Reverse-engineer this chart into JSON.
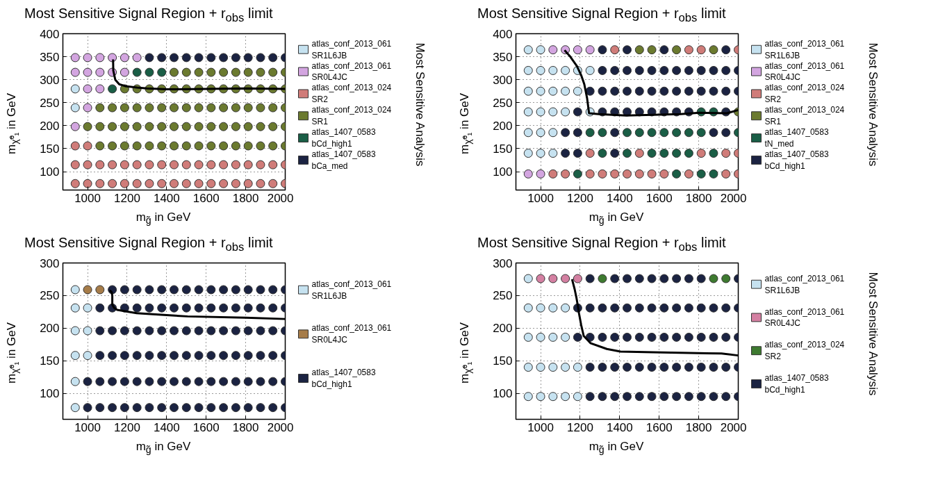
{
  "chart_data": [
    {
      "type": "scatter",
      "title": "Most Sensitive Signal Region + r$_{obs}$ limit",
      "xlabel": "m$_{g̃}$ in GeV",
      "ylabel": "m$_{χ̃⁰₁}$ in GeV",
      "legend_title": "Most Sensitive Analysis",
      "xlim": [
        875,
        2000
      ],
      "xticks": [
        1000,
        1200,
        1400,
        1600,
        1800,
        2000
      ],
      "ylim": [
        60,
        400
      ],
      "yticks": [
        100,
        150,
        200,
        250,
        300,
        350,
        400
      ],
      "grid": true,
      "legend": "right",
      "marker": "circle",
      "series": [
        {
          "name": "atlas_conf_2013_061\nSR1L6JB",
          "color": "#c6e2f0",
          "x": [
            937.5,
            937.5
          ],
          "values": [
            280,
            239
          ]
        },
        {
          "name": "atlas_conf_2013_061\nSR0L4JC",
          "color": "#d3a5e0",
          "x": [
            937.5,
            1000,
            1062.5,
            1125,
            1187.5,
            1250,
            937.5,
            1000,
            1062.5,
            1125,
            1187.5,
            1000,
            1062.5,
            1000,
            937.5
          ],
          "values": [
            348,
            348,
            348,
            348,
            348,
            348,
            316,
            316,
            316,
            316,
            316,
            280,
            280,
            239,
            198
          ]
        },
        {
          "name": "atlas_conf_2013_024\nSR2",
          "color": "#d07c79",
          "x": [
            937.5,
            1000,
            937.5,
            1000,
            1062.5,
            1125,
            1187.5,
            1250,
            1312.5,
            1375,
            1437.5,
            1500,
            1562.5,
            1625,
            1687.5,
            1750,
            1812.5,
            1875,
            1937.5,
            2000,
            937.5,
            1000,
            1062.5,
            1125,
            1187.5,
            1250,
            1312.5,
            1375,
            1437.5,
            1500,
            1562.5,
            1625,
            1687.5,
            1750,
            1812.5,
            1875,
            1937.5,
            2000
          ],
          "values": [
            156,
            156,
            115,
            115,
            115,
            115,
            115,
            115,
            115,
            115,
            115,
            115,
            115,
            115,
            115,
            115,
            115,
            115,
            115,
            115,
            74,
            74,
            74,
            74,
            74,
            74,
            74,
            74,
            74,
            74,
            74,
            74,
            74,
            74,
            74,
            74,
            74,
            74
          ]
        },
        {
          "name": "atlas_conf_2013_024\nSR1",
          "color": "#6b7a2f",
          "x": [
            1437.5,
            1500,
            1562.5,
            1625,
            1687.5,
            1750,
            1812.5,
            1875,
            1937.5,
            2000,
            1187.5,
            1250,
            1312.5,
            1375,
            1437.5,
            1500,
            1562.5,
            1625,
            1687.5,
            1750,
            1812.5,
            1875,
            1937.5,
            2000,
            1062.5,
            1125,
            1187.5,
            1250,
            1312.5,
            1375,
            1437.5,
            1500,
            1562.5,
            1625,
            1687.5,
            1750,
            1812.5,
            1875,
            1937.5,
            2000,
            1000,
            1062.5,
            1125,
            1187.5,
            1250,
            1312.5,
            1375,
            1437.5,
            1500,
            1562.5,
            1625,
            1687.5,
            1750,
            1812.5,
            1875,
            1937.5,
            2000,
            1062.5,
            1125,
            1187.5,
            1250,
            1312.5,
            1375,
            1437.5,
            1500,
            1562.5,
            1625,
            1687.5,
            1750,
            1812.5,
            1875,
            1937.5,
            2000
          ],
          "values": [
            316,
            316,
            316,
            316,
            316,
            316,
            316,
            316,
            316,
            316,
            280,
            280,
            280,
            280,
            280,
            280,
            280,
            280,
            280,
            280,
            280,
            280,
            280,
            280,
            239,
            239,
            239,
            239,
            239,
            239,
            239,
            239,
            239,
            239,
            239,
            239,
            239,
            239,
            239,
            239,
            198,
            198,
            198,
            198,
            198,
            198,
            198,
            198,
            198,
            198,
            198,
            198,
            198,
            198,
            198,
            198,
            198,
            156,
            156,
            156,
            156,
            156,
            156,
            156,
            156,
            156,
            156,
            156,
            156,
            156,
            156,
            156,
            156
          ]
        },
        {
          "name": "atlas_1407_0583\nbCd_high1",
          "color": "#1a5e46",
          "x": [
            1250,
            1312.5,
            1375,
            1125
          ],
          "values": [
            316,
            316,
            316,
            280
          ]
        },
        {
          "name": "atlas_1407_0583\nbCa_med",
          "color": "#1b2342",
          "x": [
            1312.5,
            1375,
            1437.5,
            1500,
            1562.5,
            1625,
            1687.5,
            1750,
            1812.5,
            1875,
            1937.5,
            2000
          ],
          "values": [
            348,
            348,
            348,
            348,
            348,
            348,
            348,
            348,
            348,
            348,
            348,
            348
          ]
        },
        {
          "type": "line",
          "marker": "none",
          "color": "#000000",
          "x": [
            1129,
            1130,
            1140,
            1160,
            1190,
            1250,
            1300,
            1400,
            1600,
            1800,
            2000
          ],
          "values": [
            344,
            320,
            300,
            290,
            286,
            283,
            281,
            279,
            280,
            281,
            280
          ]
        }
      ]
    },
    {
      "type": "scatter",
      "title": "Most Sensitive Signal Region + r$_{obs}$ limit",
      "xlabel": "m$_{g̃}$ in GeV",
      "ylabel": "m$_{χ̃⁰₁}$ in GeV",
      "legend_title": "Most Sensitive Analysis",
      "xlim": [
        875,
        2000
      ],
      "xticks": [
        1000,
        1200,
        1400,
        1600,
        1800,
        2000
      ],
      "ylim": [
        60,
        400
      ],
      "yticks": [
        100,
        150,
        200,
        250,
        300,
        350,
        400
      ],
      "grid": true,
      "legend": "right",
      "marker": "circle",
      "series": [
        {
          "name": "atlas_conf_2013_061\nSR1L6JB",
          "color": "#c6e2f0",
          "x": [
            937.5,
            1000,
            937.5,
            1000,
            1062.5,
            1125,
            1187.5,
            1250,
            937.5,
            1000,
            1062.5,
            1125,
            1187.5,
            937.5,
            1000,
            1062.5,
            1125,
            1250,
            937.5,
            1000,
            1062.5,
            937.5,
            1000,
            1062.5
          ],
          "values": [
            365,
            365,
            320,
            320,
            320,
            320,
            320,
            320,
            275,
            275,
            275,
            275,
            275,
            230,
            230,
            230,
            230,
            230,
            185,
            185,
            185,
            140,
            140,
            140
          ]
        },
        {
          "name": "atlas_conf_2013_061\nSR0L4JC",
          "color": "#d3a5e0",
          "x": [
            1062.5,
            1125,
            1187.5,
            1250,
            937.5,
            1000
          ],
          "values": [
            365,
            365,
            365,
            365,
            95,
            95
          ]
        },
        {
          "name": "atlas_conf_2013_024\nSR2",
          "color": "#d07c79",
          "x": [
            1375,
            1750,
            1812.5,
            2000,
            1250,
            1500,
            1812.5,
            1937.5,
            2000,
            1062.5,
            1125,
            1250,
            1312.5,
            1375,
            1437.5,
            1500,
            1562.5,
            1625,
            1750,
            1937.5,
            2000
          ],
          "values": [
            365,
            365,
            365,
            365,
            140,
            140,
            140,
            140,
            140,
            95,
            95,
            95,
            95,
            95,
            95,
            95,
            95,
            95,
            95,
            95,
            95
          ]
        },
        {
          "name": "atlas_conf_2013_024\nSR1",
          "color": "#6b7a2f",
          "x": [
            1500,
            1562.5,
            1687.5,
            1875,
            2000
          ],
          "values": [
            365,
            365,
            365,
            365,
            230
          ]
        },
        {
          "name": "atlas_1407_0583\ntN_med",
          "color": "#1a5e46",
          "x": [
            1812.5,
            1875,
            1250,
            1312.5,
            1437.5,
            1500,
            1562.5,
            1625,
            1687.5,
            1750,
            1812.5,
            2000,
            1312.5,
            1437.5,
            1562.5,
            1625,
            1687.5,
            1750,
            1875,
            1187.5,
            1687.5,
            1812.5,
            1875
          ],
          "values": [
            230,
            230,
            185,
            185,
            185,
            185,
            185,
            185,
            185,
            185,
            185,
            185,
            140,
            140,
            140,
            140,
            140,
            140,
            140,
            95,
            95,
            95,
            95
          ]
        },
        {
          "name": "atlas_1407_0583\nbCd_high1",
          "color": "#1b2342",
          "x": [
            1312.5,
            1437.5,
            1625,
            1937.5,
            1312.5,
            1375,
            1437.5,
            1500,
            1562.5,
            1625,
            1687.5,
            1750,
            1812.5,
            1875,
            1937.5,
            2000,
            1250,
            1312.5,
            1375,
            1437.5,
            1500,
            1562.5,
            1625,
            1687.5,
            1750,
            1812.5,
            1875,
            1937.5,
            2000,
            1187.5,
            1312.5,
            1375,
            1437.5,
            1500,
            1562.5,
            1625,
            1687.5,
            1750,
            1937.5,
            1125,
            1187.5,
            1375,
            1875,
            1937.5,
            1125,
            1187.5,
            1375
          ],
          "values": [
            365,
            365,
            365,
            365,
            320,
            320,
            320,
            320,
            320,
            320,
            320,
            320,
            320,
            320,
            320,
            320,
            275,
            275,
            275,
            275,
            275,
            275,
            275,
            275,
            275,
            275,
            275,
            275,
            275,
            230,
            230,
            230,
            230,
            230,
            230,
            230,
            230,
            230,
            230,
            185,
            185,
            185,
            185,
            185,
            140,
            140,
            140
          ]
        },
        {
          "type": "line",
          "marker": "none",
          "color": "#000000",
          "x": [
            1121,
            1150,
            1183,
            1205,
            1221,
            1235,
            1245,
            1294,
            1432,
            1600,
            1707,
            1804,
            1942,
            2000
          ],
          "values": [
            364,
            350,
            330,
            310,
            290,
            260,
            227,
            225,
            222,
            224,
            225,
            228,
            227,
            234
          ]
        }
      ]
    },
    {
      "type": "scatter",
      "title": "Most Sensitive Signal Region + r$_{obs}$ limit",
      "xlabel": "m$_{g̃}$ in GeV",
      "ylabel": "m$_{χ̃⁰₁}$ in GeV",
      "xlim": [
        875,
        2000
      ],
      "xticks": [
        1000,
        1200,
        1400,
        1600,
        1800,
        2000
      ],
      "ylim": [
        60,
        300
      ],
      "yticks": [
        100,
        150,
        200,
        250,
        300
      ],
      "grid": true,
      "legend": "right",
      "marker": "circle",
      "series": [
        {
          "name": "atlas_conf_2013_061\nSR1L6JB",
          "color": "#c6e2f0",
          "x": [
            937.5,
            937.5,
            937.5,
            937.5,
            937.5,
            937.5,
            1000,
            1000,
            1000
          ],
          "values": [
            259,
            231,
            196,
            158,
            118,
            78,
            231,
            196,
            158
          ]
        },
        {
          "name": "atlas_conf_2013_061\nSR0L4JC",
          "color": "#a67c49",
          "x": [
            1000,
            1062.5
          ],
          "values": [
            259,
            259
          ]
        },
        {
          "name": "atlas_1407_0583\nbCd_high1",
          "color": "#1b2342",
          "x": [
            1125,
            1187.5,
            1250,
            1312.5,
            1375,
            1437.5,
            1500,
            1562.5,
            1625,
            1687.5,
            1750,
            1812.5,
            1875,
            1937.5,
            2000,
            1062.5,
            1125,
            1187.5,
            1250,
            1312.5,
            1375,
            1437.5,
            1500,
            1562.5,
            1625,
            1687.5,
            1750,
            1812.5,
            1875,
            1937.5,
            2000,
            1062.5,
            1125,
            1187.5,
            1250,
            1312.5,
            1375,
            1437.5,
            1500,
            1562.5,
            1625,
            1687.5,
            1750,
            1812.5,
            1875,
            1937.5,
            2000,
            1062.5,
            1125,
            1187.5,
            1250,
            1312.5,
            1375,
            1437.5,
            1500,
            1562.5,
            1625,
            1687.5,
            1750,
            1812.5,
            1875,
            1937.5,
            2000,
            1000,
            1062.5,
            1125,
            1187.5,
            1250,
            1312.5,
            1375,
            1437.5,
            1500,
            1562.5,
            1625,
            1687.5,
            1750,
            1812.5,
            1875,
            1937.5,
            2000,
            1000,
            1062.5,
            1125,
            1187.5,
            1250,
            1312.5,
            1375,
            1437.5,
            1500,
            1562.5,
            1625,
            1687.5,
            1750,
            1812.5,
            1875,
            1937.5,
            2000
          ],
          "values": [
            259,
            259,
            259,
            259,
            259,
            259,
            259,
            259,
            259,
            259,
            259,
            259,
            259,
            259,
            259,
            231,
            231,
            231,
            231,
            231,
            231,
            231,
            231,
            231,
            231,
            231,
            231,
            231,
            231,
            231,
            231,
            196,
            196,
            196,
            196,
            196,
            196,
            196,
            196,
            196,
            196,
            196,
            196,
            196,
            196,
            196,
            196,
            158,
            158,
            158,
            158,
            158,
            158,
            158,
            158,
            158,
            158,
            158,
            158,
            158,
            158,
            158,
            158,
            118,
            118,
            118,
            118,
            118,
            118,
            118,
            118,
            118,
            118,
            118,
            118,
            118,
            118,
            118,
            118,
            118,
            78,
            78,
            78,
            78,
            78,
            78,
            78,
            78,
            78,
            78,
            78,
            78,
            78,
            78,
            78,
            78,
            78
          ]
        },
        {
          "type": "line",
          "marker": "none",
          "color": "#000000",
          "x": [
            1112,
            1122,
            1125,
            1125,
            1135,
            1150,
            1248,
            1400,
            1506,
            1800,
            2000
          ],
          "values": [
            258,
            255,
            250,
            236,
            231,
            228,
            223,
            220,
            218,
            216,
            214
          ]
        }
      ]
    },
    {
      "type": "scatter",
      "title": "Most Sensitive Signal Region + r$_{obs}$ limit",
      "xlabel": "m$_{g̃}$ in GeV",
      "ylabel": "m$_{χ̃⁰₁}$ in GeV",
      "legend_title": "Most Sensitive Analysis",
      "xlim": [
        875,
        2000
      ],
      "xticks": [
        1000,
        1200,
        1400,
        1600,
        1800,
        2000
      ],
      "ylim": [
        60,
        300
      ],
      "yticks": [
        100,
        150,
        200,
        250,
        300
      ],
      "grid": true,
      "legend": "right",
      "marker": "circle",
      "series": [
        {
          "name": "atlas_conf_2013_061\nSR1L6JB",
          "color": "#c6e2f0",
          "x": [
            937.5,
            937.5,
            1000,
            1062.5,
            1125,
            937.5,
            1000,
            1062.5,
            1125,
            937.5,
            1000,
            1062.5,
            1125,
            1187.5,
            937.5,
            1000,
            1062.5,
            1125,
            1187.5
          ],
          "values": [
            276,
            231,
            231,
            231,
            231,
            186,
            186,
            186,
            186,
            140,
            140,
            140,
            140,
            140,
            95,
            95,
            95,
            95,
            95
          ]
        },
        {
          "name": "atlas_conf_2013_061\nSR0L4JC",
          "color": "#d480a2",
          "x": [
            1000,
            1062.5,
            1125,
            1187.5
          ],
          "values": [
            276,
            276,
            276,
            276
          ]
        },
        {
          "name": "atlas_conf_2013_024\nSR2",
          "color": "#3e7a30",
          "x": [
            1312.5,
            1875,
            1937.5
          ],
          "values": [
            276,
            276,
            276
          ]
        },
        {
          "name": "atlas_1407_0583\nbCd_high1",
          "color": "#1b2342",
          "x": [
            1250,
            1375,
            1437.5,
            1500,
            1562.5,
            1625,
            1687.5,
            1750,
            1812.5,
            2000,
            1187.5,
            1250,
            1312.5,
            1375,
            1437.5,
            1500,
            1562.5,
            1625,
            1687.5,
            1750,
            1812.5,
            1875,
            1937.5,
            2000,
            1187.5,
            1250,
            1312.5,
            1375,
            1437.5,
            1500,
            1562.5,
            1625,
            1687.5,
            1750,
            1812.5,
            1875,
            1937.5,
            2000,
            1250,
            1312.5,
            1375,
            1437.5,
            1500,
            1562.5,
            1625,
            1687.5,
            1750,
            1812.5,
            1875,
            1937.5,
            2000,
            1250,
            1312.5,
            1375,
            1437.5,
            1500,
            1562.5,
            1625,
            1687.5,
            1750,
            1812.5,
            1875,
            1937.5,
            2000
          ],
          "values": [
            276,
            276,
            276,
            276,
            276,
            276,
            276,
            276,
            276,
            276,
            231,
            231,
            231,
            231,
            231,
            231,
            231,
            231,
            231,
            231,
            231,
            231,
            231,
            231,
            186,
            186,
            186,
            186,
            186,
            186,
            186,
            186,
            186,
            186,
            186,
            186,
            186,
            186,
            140,
            140,
            140,
            140,
            140,
            140,
            140,
            140,
            140,
            140,
            140,
            140,
            140,
            95,
            95,
            95,
            95,
            95,
            95,
            95,
            95,
            95,
            95,
            95,
            95,
            95
          ]
        },
        {
          "type": "line",
          "marker": "none",
          "color": "#000000",
          "x": [
            1159,
            1172,
            1181,
            1188,
            1194,
            1205,
            1218,
            1252,
            1335,
            1404,
            1570,
            1915,
            2000
          ],
          "values": [
            275,
            260,
            247,
            235,
            223,
            205,
            188,
            177,
            168,
            164,
            163,
            161,
            158
          ]
        }
      ]
    }
  ]
}
